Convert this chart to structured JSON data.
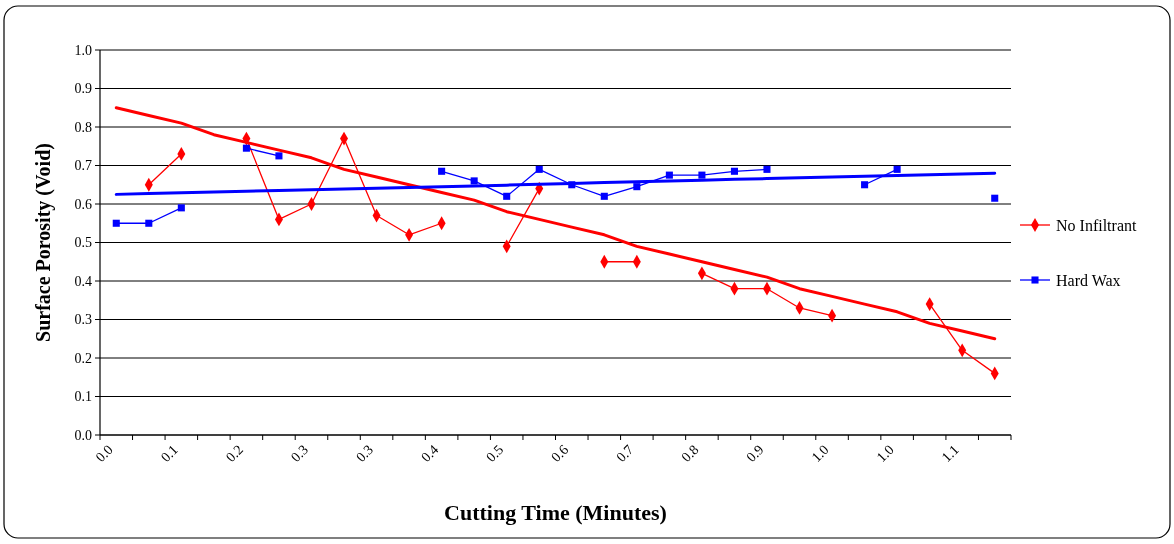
{
  "chart_data": {
    "type": "line",
    "xlabel": "Cutting Time (Minutes)",
    "ylabel": "Surface Porosity (Void)",
    "categories": [
      "0.0",
      null,
      "0.1",
      null,
      "0.2",
      null,
      "0.3",
      null,
      "0.3",
      null,
      "0.4",
      null,
      "0.5",
      null,
      "0.6",
      null,
      "0.7",
      null,
      "0.8",
      null,
      "0.9",
      null,
      "1.0",
      null,
      "1.0",
      null,
      "1.1",
      null
    ],
    "ylim": [
      0,
      1
    ],
    "yticks": [
      {
        "value": 0,
        "label": "0.0"
      },
      {
        "value": 0.1,
        "label": "0.1"
      },
      {
        "value": 0.2,
        "label": "0.2"
      },
      {
        "value": 0.3,
        "label": "0.3"
      },
      {
        "value": 0.4,
        "label": "0.4"
      },
      {
        "value": 0.5,
        "label": "0.5"
      },
      {
        "value": 0.6,
        "label": "0.6"
      },
      {
        "value": 0.7,
        "label": "0.7"
      },
      {
        "value": 0.8,
        "label": "0.8"
      },
      {
        "value": 0.9,
        "label": "0.9"
      },
      {
        "value": 1,
        "label": "1.0"
      }
    ],
    "grid": "y",
    "legend": "right",
    "series": [
      {
        "name": "No Infiltrant",
        "color": "#ff0000",
        "marker": "diamond",
        "values": [
          null,
          0.65,
          0.73,
          null,
          0.77,
          0.56,
          0.6,
          0.77,
          0.57,
          0.52,
          0.55,
          null,
          0.49,
          0.64,
          null,
          0.45,
          0.45,
          null,
          0.42,
          0.38,
          0.38,
          0.33,
          0.31,
          null,
          null,
          0.34,
          0.22,
          0.16
        ]
      },
      {
        "name": "Hard Wax",
        "color": "#0000ff",
        "marker": "square",
        "values": [
          0.55,
          0.55,
          0.59,
          null,
          0.745,
          0.725,
          null,
          null,
          null,
          null,
          0.685,
          0.66,
          0.62,
          0.69,
          0.65,
          0.62,
          0.645,
          0.675,
          0.675,
          0.685,
          0.69,
          null,
          null,
          0.65,
          0.69,
          null,
          null,
          0.615
        ]
      },
      {
        "color": "#ff0000",
        "marker": "none",
        "values": [
          0.85,
          0.83,
          0.81,
          0.78,
          0.76,
          0.74,
          0.72,
          0.69,
          0.67,
          0.65,
          0.63,
          0.61,
          0.58,
          0.56,
          0.54,
          0.52,
          0.49,
          0.47,
          0.45,
          0.43,
          0.41,
          0.38,
          0.36,
          0.34,
          0.32,
          0.29,
          0.27,
          0.25
        ]
      },
      {
        "color": "#0000ff",
        "marker": "none",
        "values": [
          0.625,
          0.627,
          0.629,
          0.631,
          0.633,
          0.635,
          0.637,
          0.639,
          0.641,
          0.643,
          0.645,
          0.647,
          0.649,
          0.651,
          0.653,
          0.656,
          0.658,
          0.66,
          0.662,
          0.664,
          0.666,
          0.668,
          0.67,
          0.672,
          0.674,
          0.676,
          0.678,
          0.68
        ]
      }
    ]
  }
}
